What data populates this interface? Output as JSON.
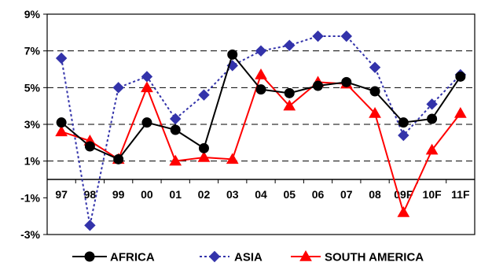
{
  "chart_data": {
    "type": "line",
    "title": "",
    "xlabel": "",
    "ylabel": "",
    "categories": [
      "97",
      "98",
      "99",
      "00",
      "01",
      "02",
      "03",
      "04",
      "05",
      "06",
      "07",
      "08",
      "09F",
      "10F",
      "11F"
    ],
    "ylim": [
      -3,
      9
    ],
    "y_ticks": [
      9,
      7,
      5,
      3,
      1,
      -1,
      -3
    ],
    "y_tick_labels": [
      "9%",
      "7%",
      "5%",
      "3%",
      "1%",
      "-1%",
      "-3%"
    ],
    "grid": "dashed horizontal at 7%, 5%, 3%, 1%",
    "legend_position": "bottom",
    "series": [
      {
        "name": "AFRICA",
        "color": "#000000",
        "line_style": "solid",
        "marker": "circle",
        "values": [
          3.1,
          1.8,
          1.1,
          3.1,
          2.7,
          1.7,
          6.8,
          4.9,
          4.7,
          5.1,
          5.3,
          4.8,
          3.1,
          3.3,
          5.6
        ]
      },
      {
        "name": "ASIA",
        "color": "#3333aa",
        "line_style": "dotted",
        "marker": "diamond",
        "values": [
          6.6,
          -2.5,
          5.0,
          5.6,
          3.3,
          4.6,
          6.2,
          7.0,
          7.3,
          7.8,
          7.8,
          6.1,
          2.4,
          4.1,
          5.7
        ]
      },
      {
        "name": "SOUTH AMERICA",
        "color": "#ff0000",
        "line_style": "solid",
        "marker": "triangle",
        "values": [
          2.6,
          2.1,
          1.1,
          5.0,
          1.0,
          1.2,
          1.1,
          5.7,
          4.0,
          5.3,
          5.2,
          3.6,
          -1.8,
          1.6,
          3.6
        ]
      }
    ]
  }
}
